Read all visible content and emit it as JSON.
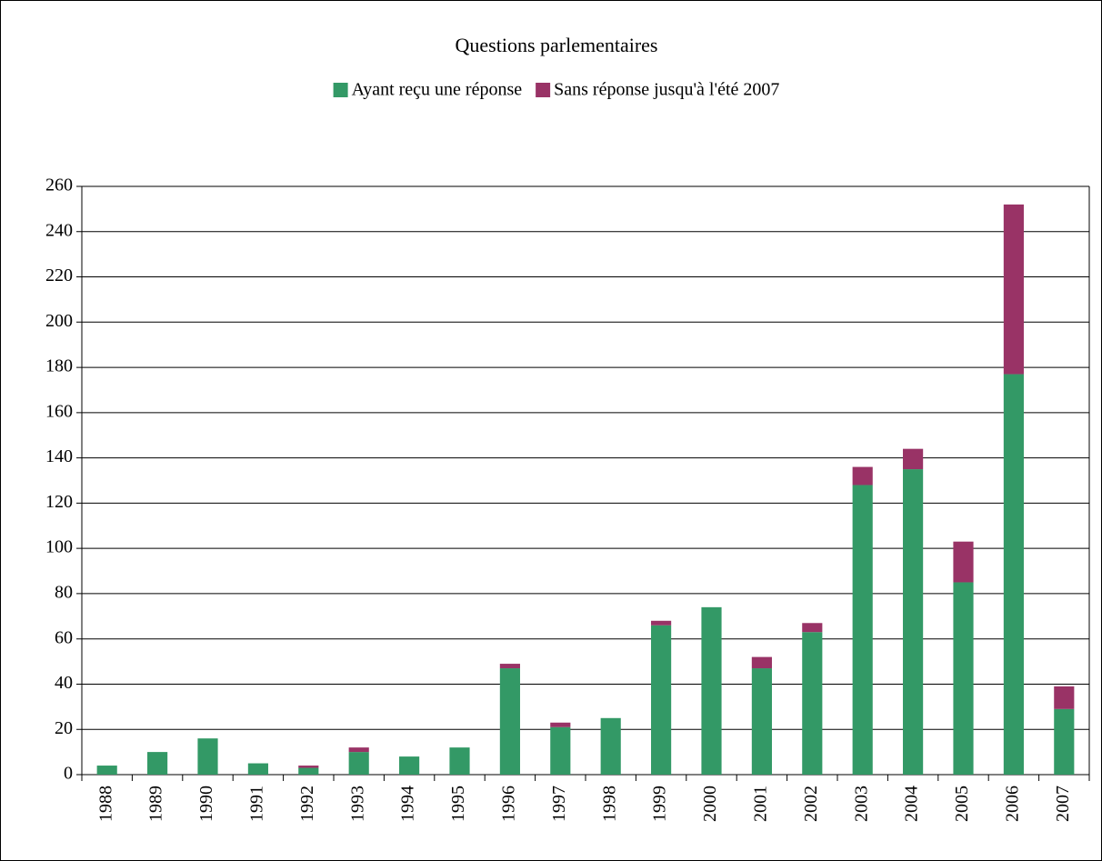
{
  "chart_data": {
    "type": "stacked_bar",
    "title": "Questions parlementaires",
    "categories": [
      "1988",
      "1989",
      "1990",
      "1991",
      "1992",
      "1993",
      "1994",
      "1995",
      "1996",
      "1997",
      "1998",
      "1999",
      "2000",
      "2001",
      "2002",
      "2003",
      "2004",
      "2005",
      "2006",
      "2007"
    ],
    "series": [
      {
        "name": "Ayant reçu une réponse",
        "color": "#339966",
        "values": [
          4,
          10,
          16,
          5,
          3,
          10,
          8,
          12,
          47,
          21,
          25,
          66,
          74,
          47,
          63,
          128,
          135,
          85,
          177,
          29
        ]
      },
      {
        "name": "Sans réponse jusqu'à l'été 2007",
        "color": "#993366",
        "values": [
          0,
          0,
          0,
          0,
          1,
          2,
          0,
          0,
          2,
          2,
          0,
          2,
          0,
          5,
          4,
          8,
          9,
          18,
          75,
          10
        ]
      }
    ],
    "ylim": [
      0,
      260
    ],
    "yticks": [
      0,
      20,
      40,
      60,
      80,
      100,
      120,
      140,
      160,
      180,
      200,
      220,
      240,
      260
    ],
    "grid": true,
    "legend": "top"
  }
}
